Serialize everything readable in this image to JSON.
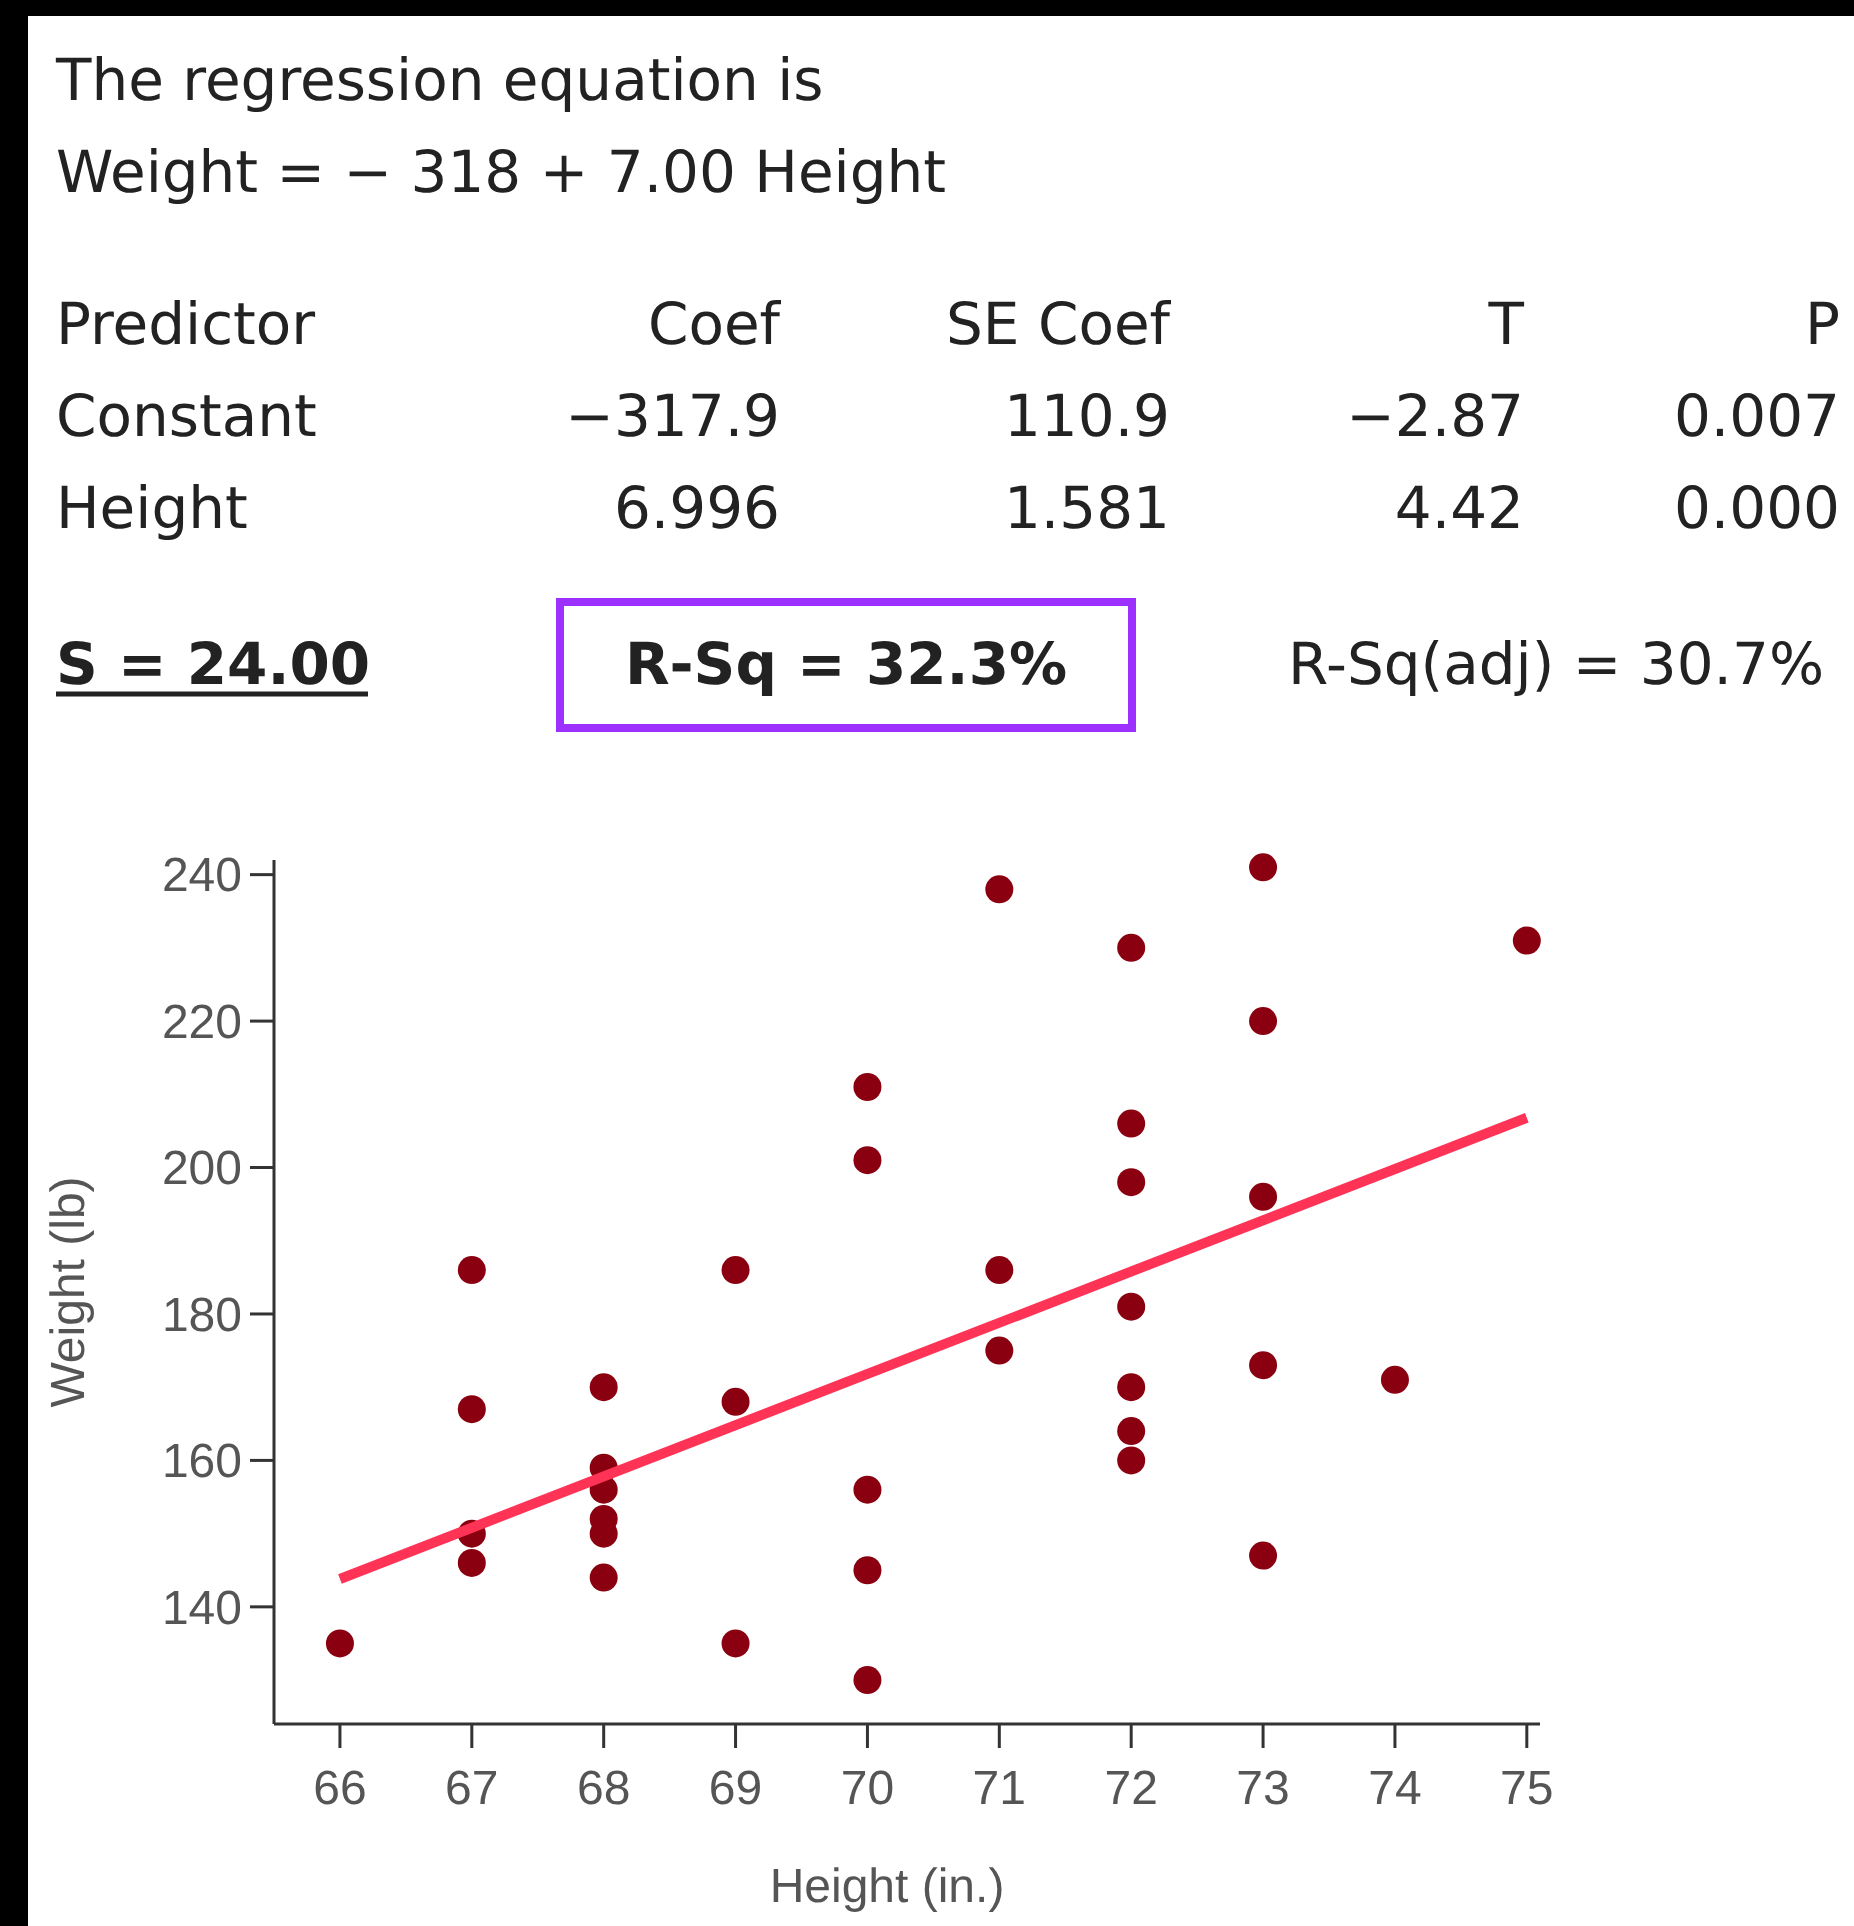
{
  "chart_data": {
    "type": "scatter",
    "xlabel": "Height (in.)",
    "ylabel": "Weight (lb)",
    "annotations": [
      "The regression equation is",
      "Weight = − 318 + 7.00 Height",
      "Predictor",
      "Coef",
      "SE Coef",
      "T",
      "P",
      "Constant",
      "−317.9",
      "110.9",
      "−2.87",
      "0.007",
      "Height",
      "6.996",
      "1.581",
      "4.42",
      "0.000",
      "S = 24.00",
      "R-Sq = 32.3%",
      "R-Sq(adj) = 30.7%"
    ],
    "series": [
      {
        "color": "#8b0010",
        "marker": "circle",
        "x": [
          66,
          67,
          67,
          67,
          67,
          68,
          68,
          68,
          68,
          68,
          68,
          69,
          69,
          69,
          70,
          70,
          70,
          70,
          70,
          71,
          71,
          71,
          72,
          72,
          72,
          72,
          72,
          72,
          72,
          73,
          73,
          73,
          73,
          73,
          74,
          75
        ],
        "values": [
          135,
          186,
          167,
          150,
          146,
          170,
          159,
          156,
          152,
          150,
          144,
          186,
          168,
          135,
          211,
          201,
          156,
          145,
          130,
          238,
          186,
          175,
          230,
          206,
          198,
          181,
          170,
          164,
          160,
          241,
          220,
          196,
          173,
          147,
          171,
          231
        ]
      },
      {
        "type": "line",
        "color": "#ff3355",
        "marker": "none",
        "line_style": "solid",
        "x": [
          66,
          75
        ],
        "values": [
          143.8,
          206.8
        ]
      }
    ],
    "xlim": [
      65.5,
      75.1
    ],
    "ylim": [
      124,
      242
    ],
    "xticks": [
      66,
      67,
      68,
      69,
      70,
      71,
      72,
      73,
      74,
      75
    ],
    "yticks": [
      140,
      160,
      180,
      200,
      220,
      240
    ],
    "grid": false
  }
}
